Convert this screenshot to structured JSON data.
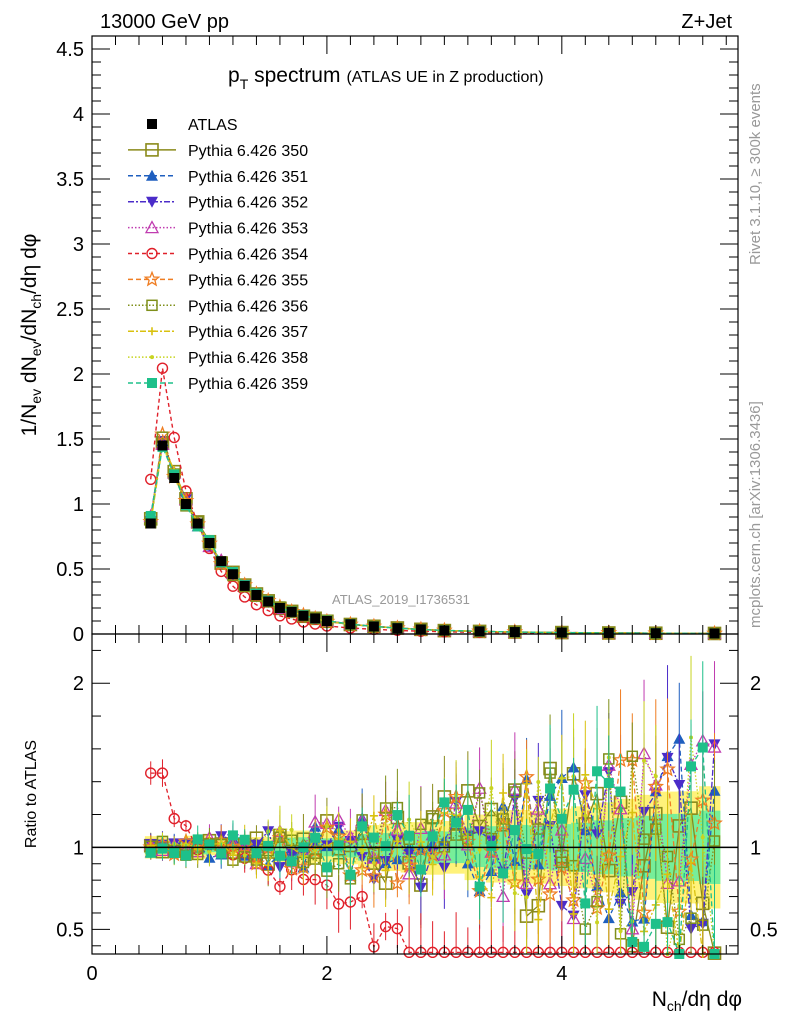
{
  "header": {
    "left": "13000 GeV pp",
    "right": "Z+Jet"
  },
  "side": {
    "rivet": "Rivet 3.1.10, ≥ 300k events",
    "mcplots": "mcplots.cern.ch [arXiv:1306.3436]"
  },
  "chart_data": [
    {
      "panel": "main",
      "type": "line",
      "title_main": "p",
      "title_sub": "T",
      "title_rest": " spectrum",
      "title_small": "(ATLAS UE in Z production)",
      "analysis_label": "ATLAS_2019_I1736531",
      "ylabel": "1/N_ev dN_ev/dN_ch/dη dφ",
      "xlim": [
        0,
        5.5
      ],
      "ylim": [
        0,
        4.6
      ],
      "y_ticks": [
        {
          "v": 0,
          "label": "0"
        },
        {
          "v": 0.5,
          "label": "0.5"
        },
        {
          "v": 1,
          "label": "1"
        },
        {
          "v": 1.5,
          "label": "1.5"
        },
        {
          "v": 2,
          "label": "2"
        },
        {
          "v": 2.5,
          "label": "2.5"
        },
        {
          "v": 3,
          "label": "3"
        },
        {
          "v": 3.5,
          "label": "3.5"
        },
        {
          "v": 4,
          "label": "4"
        },
        {
          "v": 4.5,
          "label": "4.5"
        }
      ],
      "data_points": {
        "x": [
          0.5,
          0.6,
          0.7,
          0.8,
          0.9,
          1.0,
          1.1,
          1.2,
          1.3,
          1.4,
          1.5,
          1.6,
          1.7,
          1.8,
          1.9,
          2.0,
          2.2,
          2.4,
          2.6,
          2.8,
          3.0,
          3.3,
          3.6,
          4.0,
          4.4,
          4.8,
          5.3
        ],
        "y": [
          0.85,
          1.45,
          1.2,
          1.0,
          0.85,
          0.7,
          0.56,
          0.46,
          0.37,
          0.3,
          0.25,
          0.2,
          0.17,
          0.14,
          0.12,
          0.1,
          0.075,
          0.058,
          0.045,
          0.035,
          0.027,
          0.02,
          0.015,
          0.011,
          0.008,
          0.006,
          0.004
        ]
      }
    },
    {
      "panel": "ratio",
      "type": "line",
      "ylabel": "Ratio to ATLAS",
      "xlabel": "N_ch/dη dφ",
      "xlim": [
        0,
        5.5
      ],
      "ylim": [
        0.35,
        2.3
      ],
      "x_ticks": [
        {
          "v": 0,
          "label": "0"
        },
        {
          "v": 2,
          "label": "2"
        },
        {
          "v": 4,
          "label": "4"
        }
      ],
      "y_ticks": [
        {
          "v": 0.5,
          "label": "0.5"
        },
        {
          "v": 1,
          "label": "1"
        },
        {
          "v": 2,
          "label": "2"
        }
      ]
    }
  ],
  "legend": [
    {
      "label": "ATLAS",
      "color": "#000000",
      "marker": "square-filled",
      "dash": ""
    },
    {
      "label": "Pythia 6.426 350",
      "color": "#8a8a1a",
      "marker": "square-open",
      "dash": ""
    },
    {
      "label": "Pythia 6.426 351",
      "color": "#1f5fbf",
      "marker": "triangle-up",
      "dash": "5,3"
    },
    {
      "label": "Pythia 6.426 352",
      "color": "#4b2cc9",
      "marker": "triangle-down",
      "dash": "6,2,2,2"
    },
    {
      "label": "Pythia 6.426 353",
      "color": "#c03cb0",
      "marker": "triangle-open",
      "dash": "1.5,2"
    },
    {
      "label": "Pythia 6.426 354",
      "color": "#e0202a",
      "marker": "circle-open",
      "dash": "4,3"
    },
    {
      "label": "Pythia 6.426 355",
      "color": "#ef7d22",
      "marker": "star",
      "dash": "5,3"
    },
    {
      "label": "Pythia 6.426 356",
      "color": "#7f8f1a",
      "marker": "square-open-small",
      "dash": "1.5,2"
    },
    {
      "label": "Pythia 6.426 357",
      "color": "#d9c10f",
      "marker": "cross",
      "dash": "6,2,2,2"
    },
    {
      "label": "Pythia 6.426 358",
      "color": "#c8d421",
      "marker": "dot",
      "dash": "1.5,2"
    },
    {
      "label": "Pythia 6.426 359",
      "color": "#1ec08a",
      "marker": "square-filled",
      "dash": "5,3"
    }
  ],
  "colors": {
    "band_yellow": "#fff27a",
    "band_green": "#77ee99"
  }
}
